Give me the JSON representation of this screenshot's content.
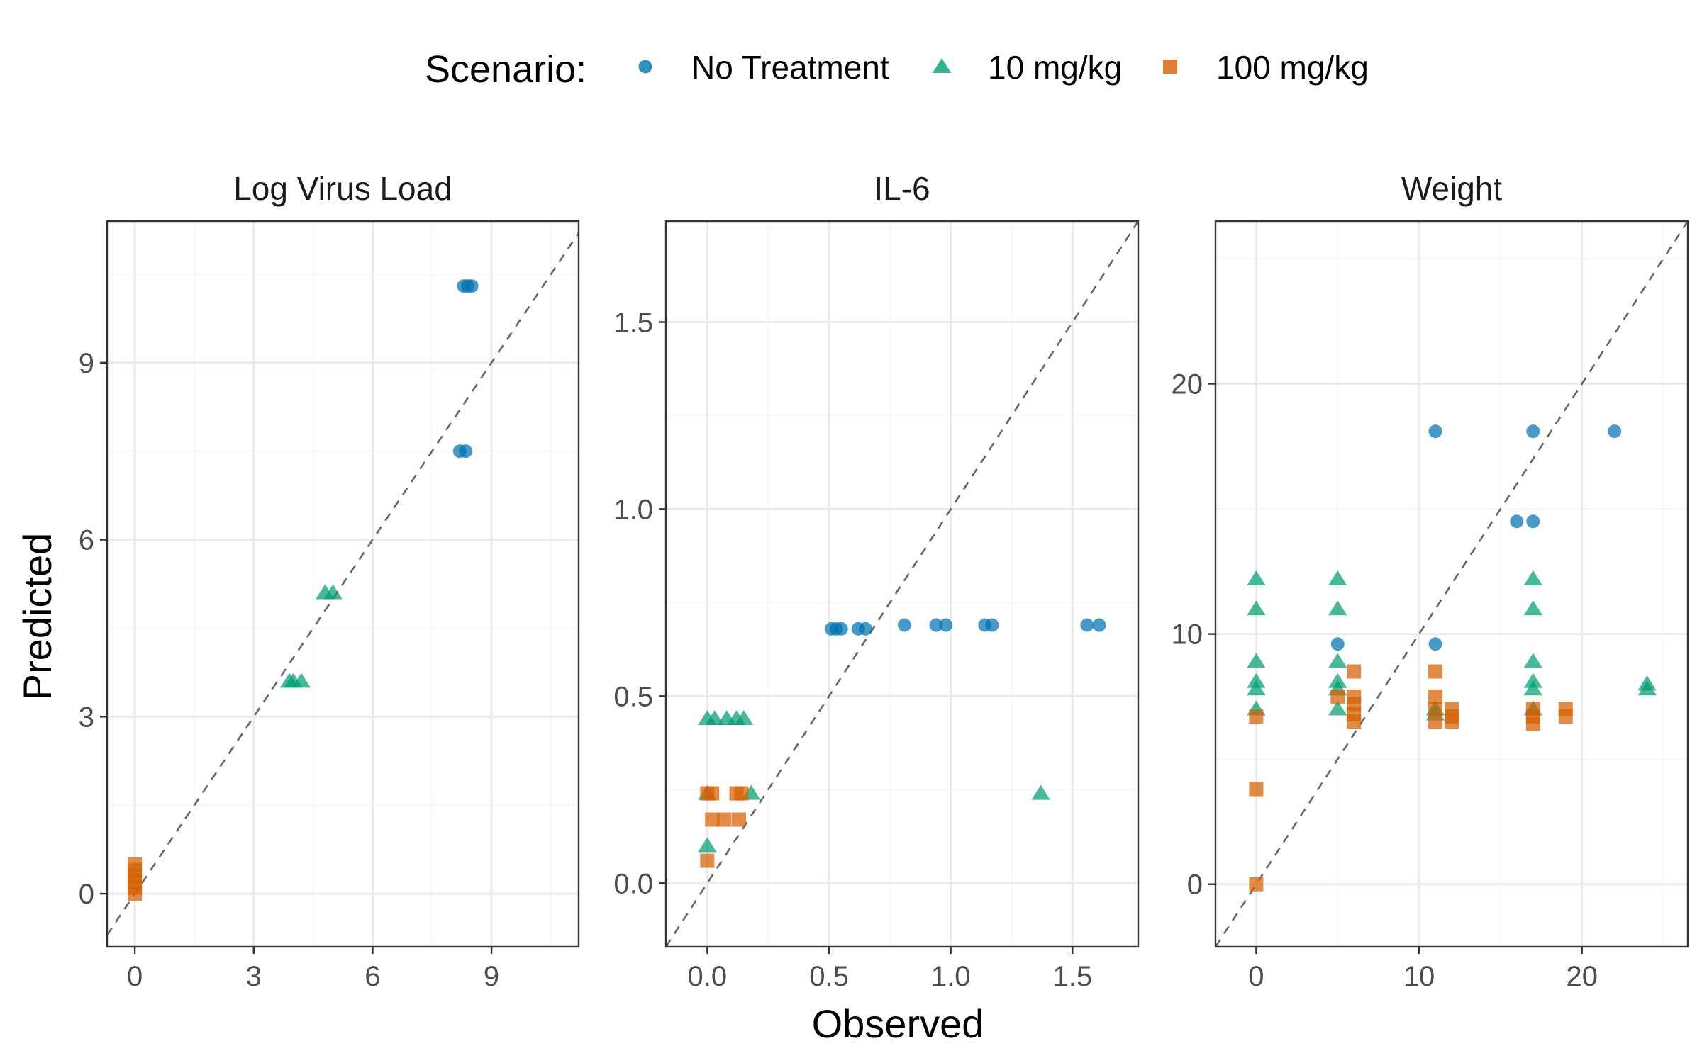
{
  "legend": {
    "title": "Scenario:",
    "items": [
      {
        "label": "No Treatment",
        "shape": "circle",
        "color": "#0072B2"
      },
      {
        "label": "10 mg/kg",
        "shape": "triangle",
        "color": "#009E73"
      },
      {
        "label": "100 mg/kg",
        "shape": "square",
        "color": "#D55E00"
      }
    ]
  },
  "axes": {
    "xlabel": "Observed",
    "ylabel": "Predicted"
  },
  "chart_data": [
    {
      "type": "scatter",
      "title": "Log Virus Load",
      "xlim": [
        -0.7,
        11.2
      ],
      "ylim": [
        -0.9,
        11.4
      ],
      "xticks": [
        0,
        3,
        6,
        9
      ],
      "xtick_labels": [
        "0",
        "3",
        "6",
        "9"
      ],
      "yticks": [
        0,
        3,
        6,
        9
      ],
      "ytick_labels": [
        "0",
        "3",
        "6",
        "9"
      ],
      "reference_line": "y = x",
      "series": [
        {
          "name": "No Treatment",
          "points": [
            [
              8.3,
              10.3
            ],
            [
              8.4,
              10.3
            ],
            [
              8.5,
              10.3
            ],
            [
              8.2,
              7.5
            ],
            [
              8.35,
              7.5
            ]
          ]
        },
        {
          "name": "10 mg/kg",
          "points": [
            [
              3.9,
              3.6
            ],
            [
              4.0,
              3.6
            ],
            [
              4.2,
              3.6
            ],
            [
              4.8,
              5.1
            ],
            [
              5.0,
              5.1
            ]
          ]
        },
        {
          "name": "100 mg/kg",
          "points": [
            [
              0,
              0.0
            ],
            [
              0,
              0.1
            ],
            [
              0,
              0.2
            ],
            [
              0,
              0.3
            ],
            [
              0,
              0.4
            ],
            [
              0,
              0.5
            ]
          ]
        }
      ]
    },
    {
      "type": "scatter",
      "title": "IL-6",
      "xlim": [
        -0.17,
        1.77
      ],
      "ylim": [
        -0.17,
        1.77
      ],
      "xticks": [
        0.0,
        0.5,
        1.0,
        1.5
      ],
      "xtick_labels": [
        "0.0",
        "0.5",
        "1.0",
        "1.5"
      ],
      "yticks": [
        0.0,
        0.5,
        1.0,
        1.5
      ],
      "ytick_labels": [
        "0.0",
        "0.5",
        "1.0",
        "1.5"
      ],
      "reference_line": "y = x",
      "series": [
        {
          "name": "No Treatment",
          "points": [
            [
              0.51,
              0.68
            ],
            [
              0.53,
              0.68
            ],
            [
              0.55,
              0.68
            ],
            [
              0.62,
              0.68
            ],
            [
              0.65,
              0.68
            ],
            [
              0.81,
              0.69
            ],
            [
              0.94,
              0.69
            ],
            [
              0.98,
              0.69
            ],
            [
              1.14,
              0.69
            ],
            [
              1.17,
              0.69
            ],
            [
              1.56,
              0.69
            ],
            [
              1.61,
              0.69
            ]
          ]
        },
        {
          "name": "10 mg/kg",
          "points": [
            [
              0.0,
              0.44
            ],
            [
              0.03,
              0.44
            ],
            [
              0.08,
              0.44
            ],
            [
              0.12,
              0.44
            ],
            [
              0.15,
              0.44
            ],
            [
              0.0,
              0.24
            ],
            [
              0.18,
              0.24
            ],
            [
              0.0,
              0.1
            ],
            [
              1.37,
              0.24
            ]
          ]
        },
        {
          "name": "100 mg/kg",
          "points": [
            [
              0.0,
              0.24
            ],
            [
              0.02,
              0.24
            ],
            [
              0.12,
              0.24
            ],
            [
              0.14,
              0.24
            ],
            [
              0.02,
              0.17
            ],
            [
              0.07,
              0.17
            ],
            [
              0.13,
              0.17
            ],
            [
              0.0,
              0.06
            ]
          ]
        }
      ]
    },
    {
      "type": "scatter",
      "title": "Weight",
      "xlim": [
        -2.5,
        26.5
      ],
      "ylim": [
        -2.5,
        26.5
      ],
      "xticks": [
        0,
        10,
        20
      ],
      "xtick_labels": [
        "0",
        "10",
        "20"
      ],
      "yticks": [
        0,
        10,
        20
      ],
      "ytick_labels": [
        "0",
        "10",
        "20"
      ],
      "reference_line": "y = x",
      "series": [
        {
          "name": "No Treatment",
          "points": [
            [
              11,
              18.1
            ],
            [
              17,
              18.1
            ],
            [
              22,
              18.1
            ],
            [
              16,
              14.5
            ],
            [
              17,
              14.5
            ],
            [
              5,
              9.6
            ],
            [
              11,
              9.6
            ]
          ]
        },
        {
          "name": "10 mg/kg",
          "points": [
            [
              0,
              12.2
            ],
            [
              0,
              11.0
            ],
            [
              0,
              8.9
            ],
            [
              0,
              8.1
            ],
            [
              0,
              7.8
            ],
            [
              0,
              7.0
            ],
            [
              5,
              12.2
            ],
            [
              5,
              11.0
            ],
            [
              5,
              8.9
            ],
            [
              5,
              8.1
            ],
            [
              5,
              7.8
            ],
            [
              5,
              7.0
            ],
            [
              11,
              7.0
            ],
            [
              11,
              6.8
            ],
            [
              17,
              12.2
            ],
            [
              17,
              11.0
            ],
            [
              17,
              8.9
            ],
            [
              17,
              8.1
            ],
            [
              17,
              7.8
            ],
            [
              17,
              7.0
            ],
            [
              24,
              8.0
            ],
            [
              24,
              7.8
            ]
          ]
        },
        {
          "name": "100 mg/kg",
          "points": [
            [
              0,
              6.7
            ],
            [
              0,
              3.8
            ],
            [
              0,
              0.0
            ],
            [
              5,
              7.5
            ],
            [
              6,
              8.5
            ],
            [
              6,
              7.5
            ],
            [
              6,
              7.2
            ],
            [
              6,
              6.8
            ],
            [
              6,
              6.5
            ],
            [
              11,
              8.5
            ],
            [
              11,
              7.5
            ],
            [
              11,
              7.0
            ],
            [
              11,
              6.5
            ],
            [
              12,
              7.0
            ],
            [
              12,
              6.7
            ],
            [
              12,
              6.5
            ],
            [
              17,
              7.0
            ],
            [
              17,
              6.7
            ],
            [
              17,
              6.4
            ],
            [
              19,
              7.0
            ],
            [
              19,
              6.7
            ]
          ]
        }
      ]
    }
  ]
}
